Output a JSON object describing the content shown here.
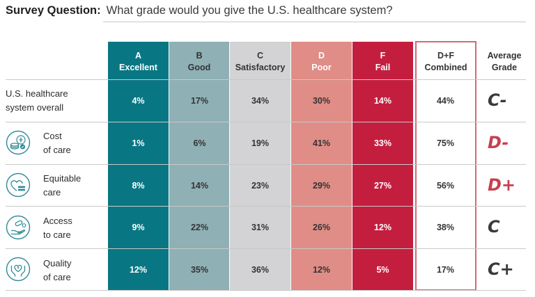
{
  "question": {
    "label": "Survey Question:",
    "text": "What grade would you give the U.S. healthcare system?"
  },
  "headers": [
    {
      "letter": "A",
      "label": "Excellent"
    },
    {
      "letter": "B",
      "label": "Good"
    },
    {
      "letter": "C",
      "label": "Satisfactory"
    },
    {
      "letter": "D",
      "label": "Poor"
    },
    {
      "letter": "F",
      "label": "Fail"
    },
    {
      "letter": "D+F",
      "label": "Combined"
    },
    {
      "letter": "Average",
      "label": "Grade"
    }
  ],
  "rows": [
    {
      "label_line1": "U.S. healthcare",
      "label_line2": "system overall",
      "icon": "",
      "A": "4%",
      "B": "17%",
      "C": "34%",
      "D": "30%",
      "F": "14%",
      "DF": "44%",
      "grade": "C-",
      "grade_color": "#3a3a3a"
    },
    {
      "label_line1": "Cost",
      "label_line2": "of care",
      "icon": "money-icon",
      "A": "1%",
      "B": "6%",
      "C": "19%",
      "D": "41%",
      "F": "33%",
      "DF": "75%",
      "grade": "D-",
      "grade_color": "#c8404e"
    },
    {
      "label_line1": "Equitable",
      "label_line2": "care",
      "icon": "equity-heart-icon",
      "A": "8%",
      "B": "14%",
      "C": "23%",
      "D": "29%",
      "F": "27%",
      "DF": "56%",
      "grade": "D+",
      "grade_color": "#c8404e"
    },
    {
      "label_line1": "Access",
      "label_line2": "to care",
      "icon": "hand-pill-icon",
      "A": "9%",
      "B": "22%",
      "C": "31%",
      "D": "26%",
      "F": "12%",
      "DF": "38%",
      "grade": "C",
      "grade_color": "#3a3a3a"
    },
    {
      "label_line1": "Quality",
      "label_line2": "of care",
      "icon": "hands-heart-icon",
      "A": "12%",
      "B": "35%",
      "C": "36%",
      "D": "12%",
      "F": "5%",
      "DF": "17%",
      "grade": "C+",
      "grade_color": "#3a3a3a"
    }
  ],
  "colors": {
    "A": "#097783",
    "B": "#8fb0b5",
    "C": "#d3d3d5",
    "D": "#df8d86",
    "F": "#c41e3f",
    "df_border": "#d06a76",
    "icon": "#2f8a96"
  },
  "chart_data": {
    "type": "table",
    "title": "What grade would you give the U.S. healthcare system?",
    "columns": [
      "A Excellent",
      "B Good",
      "C Satisfactory",
      "D Poor",
      "F Fail",
      "D+F Combined",
      "Average Grade"
    ],
    "categories": [
      "U.S. healthcare system overall",
      "Cost of care",
      "Equitable care",
      "Access to care",
      "Quality of care"
    ],
    "series": [
      {
        "name": "A Excellent",
        "values": [
          4,
          1,
          8,
          9,
          12
        ]
      },
      {
        "name": "B Good",
        "values": [
          17,
          6,
          14,
          22,
          35
        ]
      },
      {
        "name": "C Satisfactory",
        "values": [
          34,
          19,
          23,
          31,
          36
        ]
      },
      {
        "name": "D Poor",
        "values": [
          30,
          41,
          29,
          26,
          12
        ]
      },
      {
        "name": "F Fail",
        "values": [
          14,
          33,
          27,
          12,
          5
        ]
      },
      {
        "name": "D+F Combined",
        "values": [
          44,
          75,
          56,
          38,
          17
        ]
      }
    ],
    "average_grades": [
      "C-",
      "D-",
      "D+",
      "C",
      "C+"
    ]
  }
}
